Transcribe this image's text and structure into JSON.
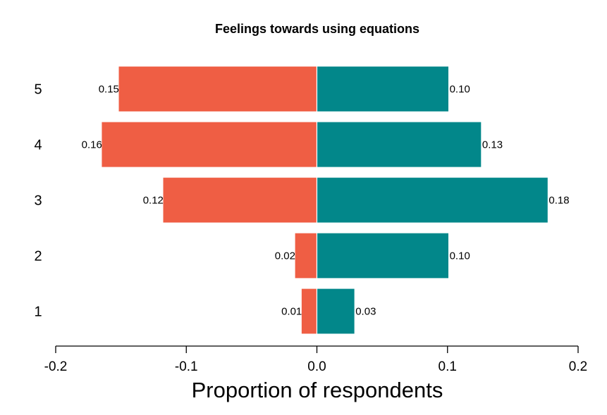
{
  "chart_data": {
    "type": "bar",
    "orientation": "horizontal",
    "diverging": true,
    "title": "Feelings towards using equations",
    "xlabel": "Proportion of respondents",
    "ylabel": "",
    "xlim": [
      -0.2,
      0.2
    ],
    "x_ticks": [
      -0.2,
      -0.1,
      0.0,
      0.1,
      0.2
    ],
    "x_tick_labels": [
      "-0.2",
      "-0.1",
      "0.0",
      "0.1",
      "0.2"
    ],
    "categories": [
      "5",
      "4",
      "3",
      "2",
      "1"
    ],
    "series": [
      {
        "color": "#ef5e44",
        "values": [
          -0.152,
          -0.165,
          -0.118,
          -0.017,
          -0.012
        ],
        "labels": [
          "0.15",
          "0.16",
          "0.12",
          "0.02",
          "0.01"
        ]
      },
      {
        "color": "#02878a",
        "values": [
          0.101,
          0.126,
          0.177,
          0.101,
          0.029
        ],
        "labels": [
          "0.10",
          "0.13",
          "0.18",
          "0.10",
          "0.03"
        ]
      }
    ],
    "grid": false,
    "legend": "none"
  }
}
